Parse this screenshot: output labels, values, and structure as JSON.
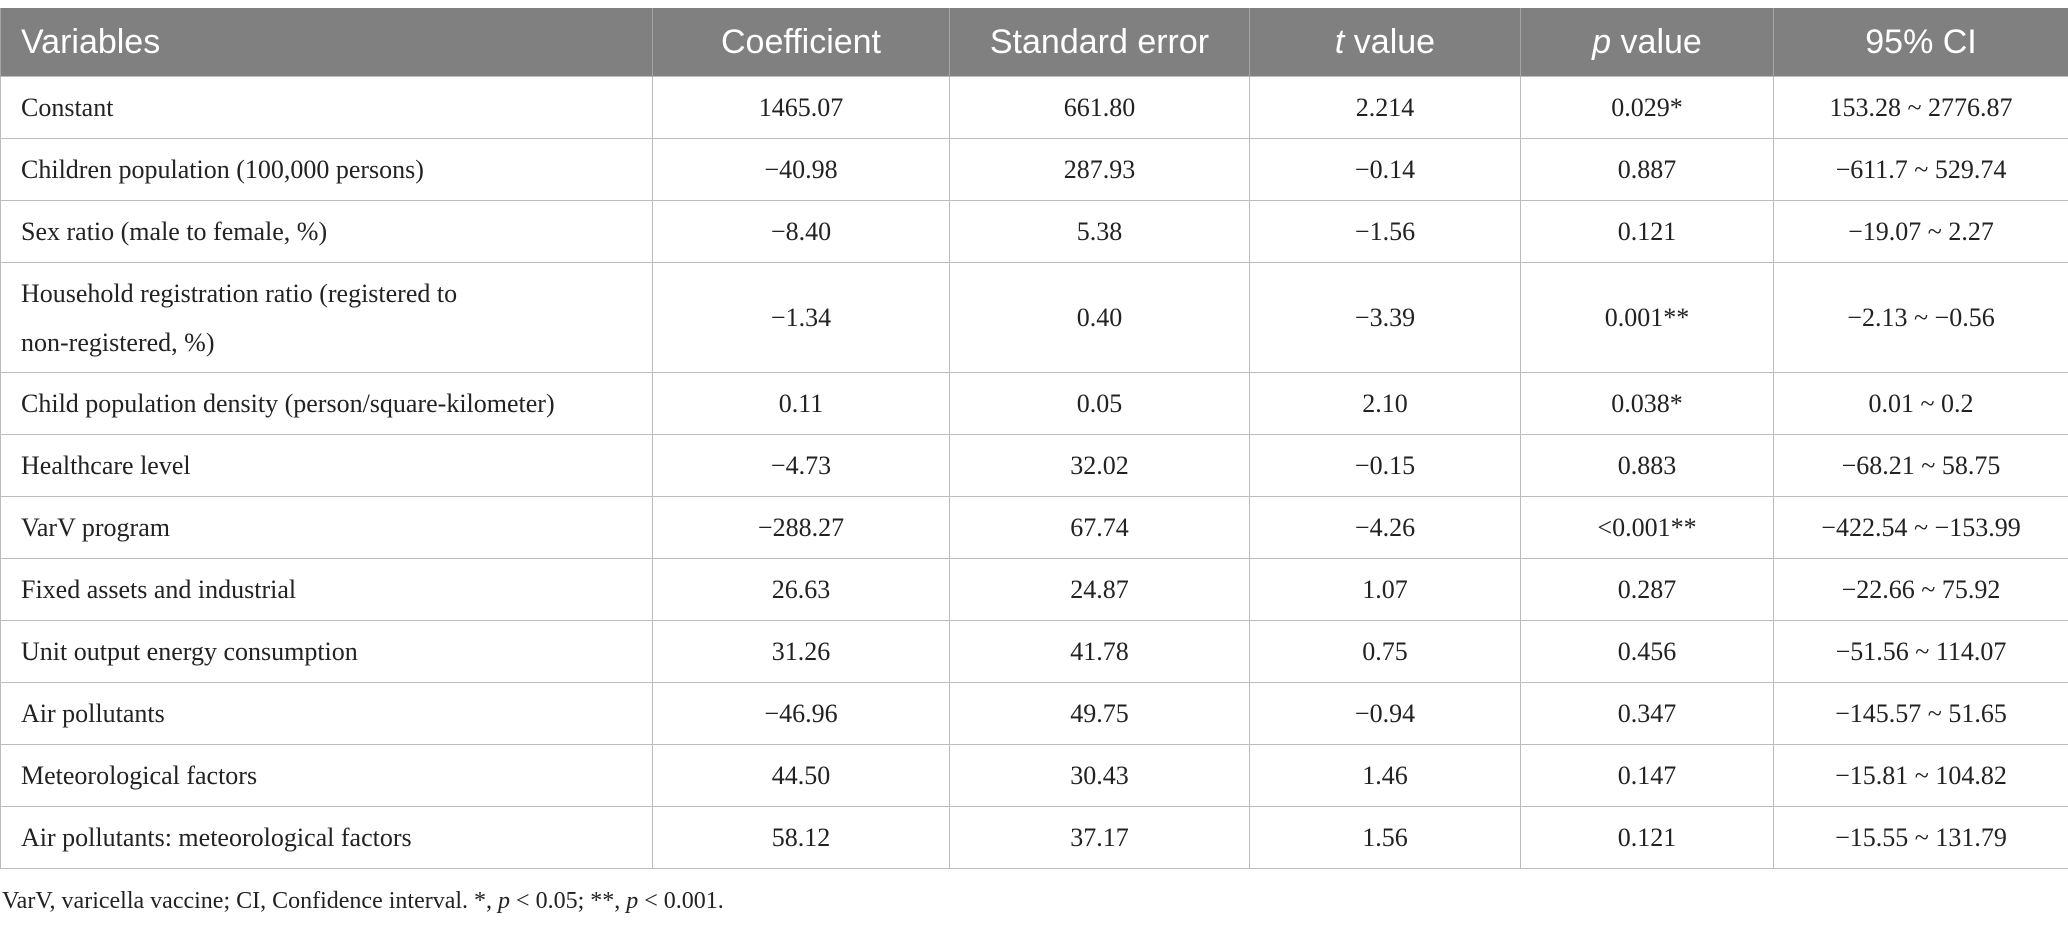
{
  "table": {
    "headers": {
      "variables": "Variables",
      "coefficient": "Coefficient",
      "standard_error": "Standard error",
      "t_italic": "t",
      "t_rest": " value",
      "p_italic": "p",
      "p_rest": " value",
      "ci": "95% CI"
    },
    "rows": [
      {
        "variable": "Constant",
        "coefficient": "1465.07",
        "se": "661.80",
        "t": "2.214",
        "p": "0.029*",
        "ci": "153.28 ~ 2776.87"
      },
      {
        "variable": "Children population (100,000 persons)",
        "coefficient": "−40.98",
        "se": "287.93",
        "t": "−0.14",
        "p": "0.887",
        "ci": "−611.7 ~ 529.74"
      },
      {
        "variable": "Sex ratio (male to female, %)",
        "coefficient": "−8.40",
        "se": "5.38",
        "t": "−1.56",
        "p": "0.121",
        "ci": "−19.07 ~ 2.27"
      },
      {
        "variable_line1": "Household registration ratio (registered to",
        "variable_line2": "non-registered, %)",
        "coefficient": "−1.34",
        "se": "0.40",
        "t": "−3.39",
        "p": "0.001**",
        "ci": "−2.13 ~ −0.56"
      },
      {
        "variable": "Child population density (person/square-kilometer)",
        "coefficient": "0.11",
        "se": "0.05",
        "t": "2.10",
        "p": "0.038*",
        "ci": "0.01 ~ 0.2"
      },
      {
        "variable": "Healthcare level",
        "coefficient": "−4.73",
        "se": "32.02",
        "t": "−0.15",
        "p": "0.883",
        "ci": "−68.21 ~ 58.75"
      },
      {
        "variable": "VarV program",
        "coefficient": "−288.27",
        "se": "67.74",
        "t": "−4.26",
        "p": "<0.001**",
        "ci": "−422.54 ~ −153.99"
      },
      {
        "variable": "Fixed assets and industrial",
        "coefficient": "26.63",
        "se": "24.87",
        "t": "1.07",
        "p": "0.287",
        "ci": "−22.66 ~ 75.92"
      },
      {
        "variable": "Unit output energy consumption",
        "coefficient": "31.26",
        "se": "41.78",
        "t": "0.75",
        "p": "0.456",
        "ci": "−51.56 ~ 114.07"
      },
      {
        "variable": "Air pollutants",
        "coefficient": "−46.96",
        "se": "49.75",
        "t": "−0.94",
        "p": "0.347",
        "ci": "−145.57 ~ 51.65"
      },
      {
        "variable": "Meteorological factors",
        "coefficient": "44.50",
        "se": "30.43",
        "t": "1.46",
        "p": "0.147",
        "ci": "−15.81 ~ 104.82"
      },
      {
        "variable": "Air pollutants: meteorological factors",
        "coefficient": "58.12",
        "se": "37.17",
        "t": "1.56",
        "p": "0.121",
        "ci": "−15.55 ~ 131.79"
      }
    ]
  },
  "footnote": {
    "part1": "VarV, varicella vaccine; CI, Confidence interval. *, ",
    "p1": "p",
    "part2": " < 0.05; **, ",
    "p2": "p",
    "part3": " < 0.001."
  }
}
